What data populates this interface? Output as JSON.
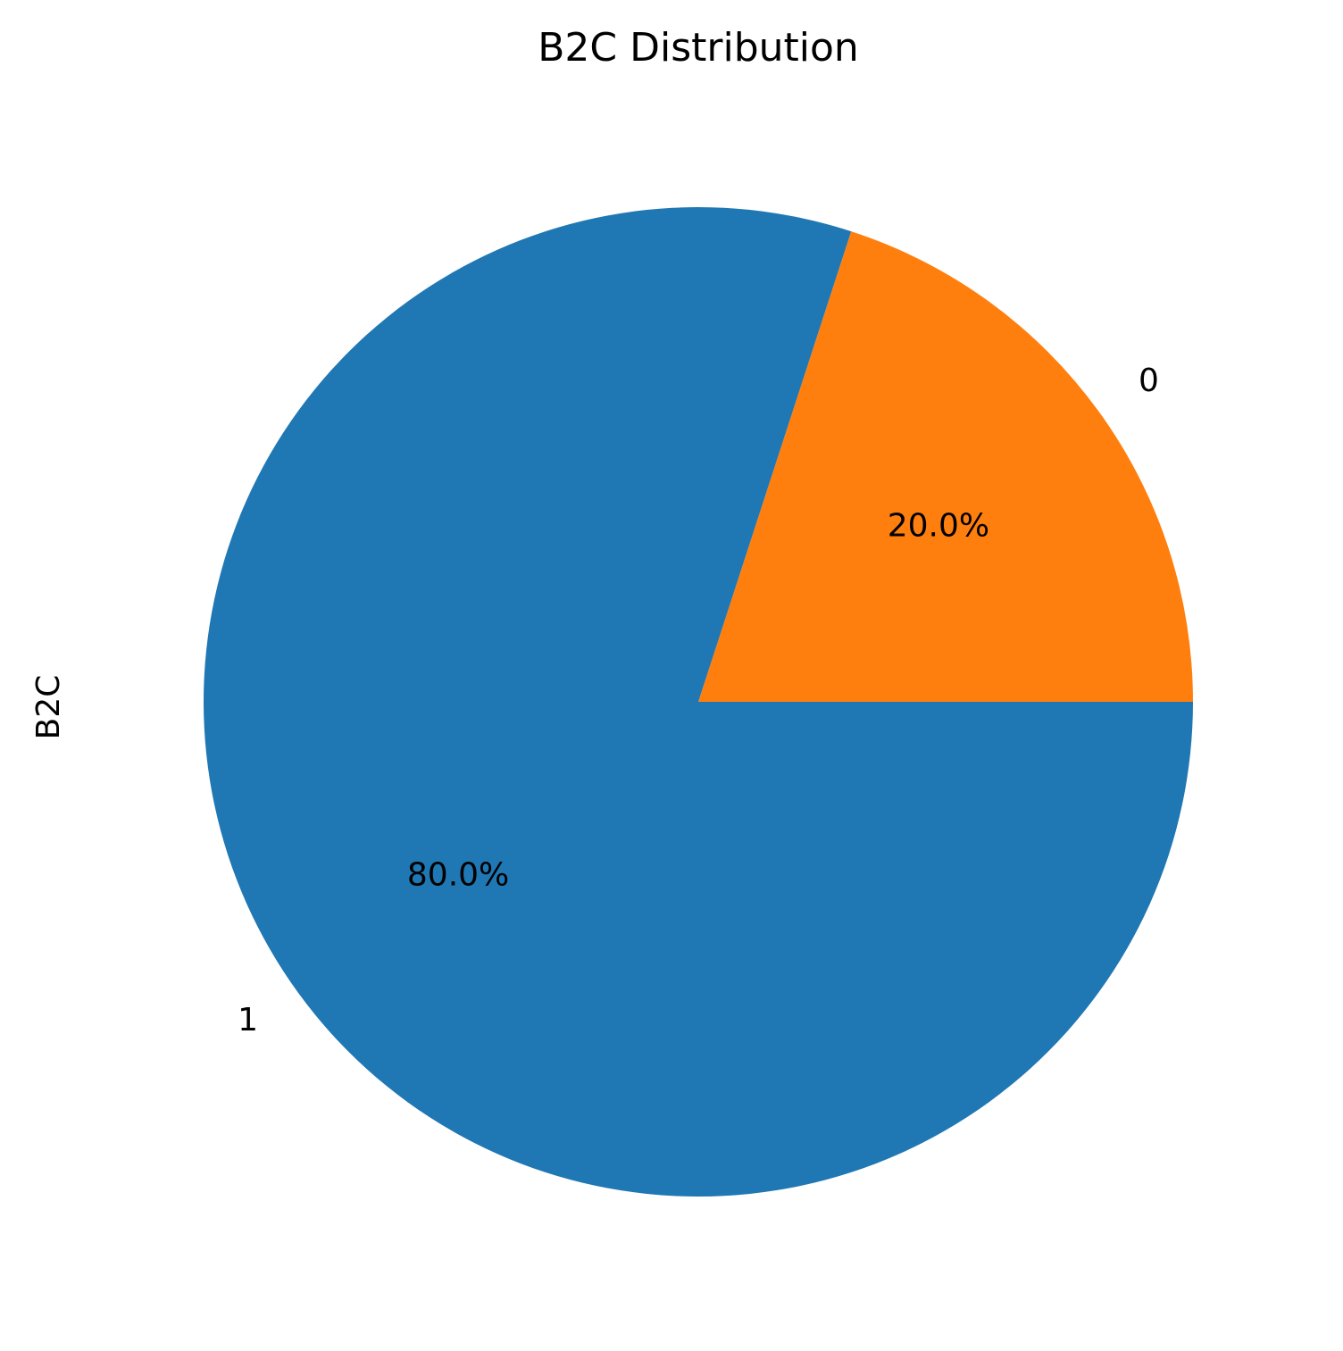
{
  "chart_data": {
    "type": "pie",
    "title": "B2C Distribution",
    "ylabel": "B2C",
    "labels": [
      "0",
      "1"
    ],
    "values": [
      20.0,
      80.0
    ],
    "autopct_labels": [
      "20.0%",
      "80.0%"
    ],
    "colors": [
      "#ff7f0e",
      "#1f77b4"
    ],
    "start_angle_deg": 0,
    "direction": "counterclockwise",
    "legend": "none"
  }
}
